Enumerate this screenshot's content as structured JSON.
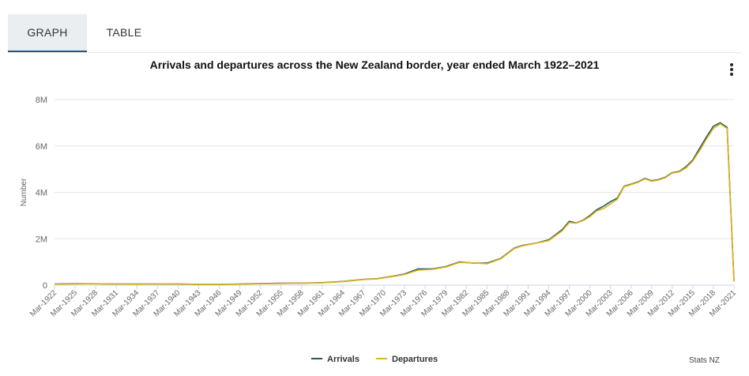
{
  "tabs": {
    "graph": "GRAPH",
    "table": "TABLE"
  },
  "menu_icon": "more-vertical-icon",
  "credit": "Stats NZ",
  "colors": {
    "arrivals": "#1e5c5c",
    "departures": "#e0b21a",
    "grid": "#e6e6e6",
    "axis_text": "#666666"
  },
  "chart_data": {
    "type": "line",
    "title": "Arrivals and departures across the New Zealand border, year ended March 1922–2021",
    "xlabel": "",
    "ylabel": "Number",
    "ylim": [
      0,
      8000000
    ],
    "yticks": [
      0,
      2000000,
      4000000,
      6000000,
      8000000
    ],
    "ytick_labels": [
      "0",
      "2M",
      "4M",
      "6M",
      "8M"
    ],
    "xlim": [
      1922,
      2021
    ],
    "xticks": [
      1922,
      1925,
      1928,
      1931,
      1934,
      1937,
      1940,
      1943,
      1946,
      1949,
      1952,
      1955,
      1958,
      1961,
      1964,
      1967,
      1970,
      1973,
      1976,
      1979,
      1982,
      1985,
      1988,
      1991,
      1994,
      1997,
      2000,
      2003,
      2006,
      2009,
      2012,
      2015,
      2018,
      2021
    ],
    "xtick_labels": [
      "Mar-1922",
      "Mar-1925",
      "Mar-1928",
      "Mar-1931",
      "Mar-1934",
      "Mar-1937",
      "Mar-1940",
      "Mar-1943",
      "Mar-1946",
      "Mar-1949",
      "Mar-1952",
      "Mar-1955",
      "Mar-1958",
      "Mar-1961",
      "Mar-1964",
      "Mar-1967",
      "Mar-1970",
      "Mar-1973",
      "Mar-1976",
      "Mar-1979",
      "Mar-1982",
      "Mar-1985",
      "Mar-1988",
      "Mar-1991",
      "Mar-1994",
      "Mar-1997",
      "Mar-2000",
      "Mar-2003",
      "Mar-2006",
      "Mar-2009",
      "Mar-2012",
      "Mar-2015",
      "Mar-2018",
      "Mar-2021"
    ],
    "legend_position": "bottom-center",
    "series": [
      {
        "name": "Arrivals",
        "x": [
          1922,
          1925,
          1928,
          1931,
          1934,
          1937,
          1940,
          1943,
          1946,
          1949,
          1952,
          1955,
          1958,
          1961,
          1964,
          1967,
          1969,
          1971,
          1973,
          1975,
          1977,
          1979,
          1981,
          1983,
          1985,
          1987,
          1989,
          1990,
          1992,
          1994,
          1996,
          1997,
          1998,
          1999,
          2000,
          2001,
          2002,
          2003,
          2004,
          2005,
          2006,
          2007,
          2008,
          2009,
          2010,
          2011,
          2012,
          2013,
          2014,
          2015,
          2016,
          2017,
          2018,
          2019,
          2020,
          2021
        ],
        "values": [
          50000,
          60000,
          60000,
          50000,
          50000,
          50000,
          50000,
          30000,
          30000,
          50000,
          70000,
          80000,
          90000,
          110000,
          160000,
          250000,
          280000,
          370000,
          480000,
          700000,
          700000,
          800000,
          1000000,
          950000,
          950000,
          1150000,
          1600000,
          1700000,
          1800000,
          1950000,
          2400000,
          2750000,
          2680000,
          2800000,
          3000000,
          3250000,
          3400000,
          3600000,
          3750000,
          4270000,
          4350000,
          4450000,
          4600000,
          4500000,
          4550000,
          4650000,
          4850000,
          4900000,
          5100000,
          5400000,
          5900000,
          6400000,
          6850000,
          7000000,
          6800000,
          200000
        ]
      },
      {
        "name": "Departures",
        "x": [
          1922,
          1925,
          1928,
          1931,
          1934,
          1937,
          1940,
          1943,
          1946,
          1949,
          1952,
          1955,
          1958,
          1961,
          1964,
          1967,
          1969,
          1971,
          1973,
          1975,
          1977,
          1979,
          1981,
          1983,
          1985,
          1987,
          1989,
          1990,
          1992,
          1994,
          1996,
          1997,
          1998,
          1999,
          2000,
          2001,
          2002,
          2003,
          2004,
          2005,
          2006,
          2007,
          2008,
          2009,
          2010,
          2011,
          2012,
          2013,
          2014,
          2015,
          2016,
          2017,
          2018,
          2019,
          2020,
          2021
        ],
        "values": [
          40000,
          50000,
          60000,
          50000,
          40000,
          50000,
          60000,
          30000,
          30000,
          40000,
          60000,
          70000,
          80000,
          100000,
          150000,
          240000,
          270000,
          360000,
          460000,
          650000,
          680000,
          780000,
          980000,
          960000,
          920000,
          1130000,
          1580000,
          1680000,
          1800000,
          1920000,
          2350000,
          2700000,
          2670000,
          2780000,
          2950000,
          3200000,
          3300000,
          3500000,
          3700000,
          4250000,
          4330000,
          4430000,
          4580000,
          4480000,
          4530000,
          4630000,
          4830000,
          4880000,
          5050000,
          5350000,
          5800000,
          6300000,
          6750000,
          6950000,
          6750000,
          150000
        ]
      }
    ]
  }
}
